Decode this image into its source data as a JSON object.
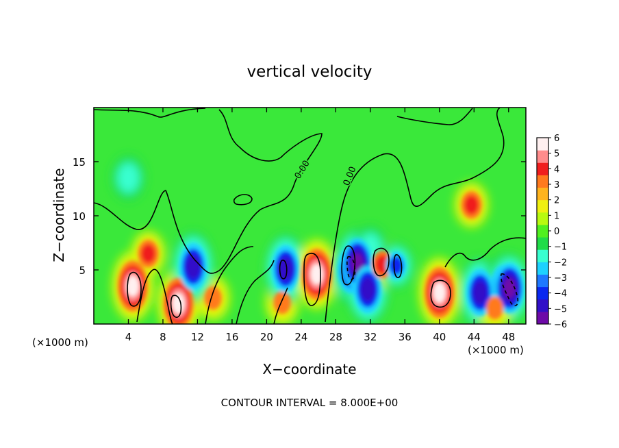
{
  "chart_data": {
    "type": "heatmap",
    "title": "vertical velocity",
    "xlabel": "X−coordinate",
    "ylabel": "Z−coordinate",
    "x_unit_left": "(×1000 m)",
    "x_unit_right": "(×1000 m)",
    "footer": "CONTOUR INTERVAL = 8.000E+00",
    "xlim": [
      0,
      50
    ],
    "ylim": [
      0,
      20
    ],
    "x_ticks": [
      4,
      8,
      12,
      16,
      20,
      24,
      28,
      32,
      36,
      40,
      44,
      48
    ],
    "y_ticks": [
      5,
      10,
      15
    ],
    "contour_labels": [
      "0.00",
      "0.00"
    ],
    "colorbar": {
      "min": -6,
      "max": 6,
      "ticks": [
        6,
        5,
        4,
        3,
        2,
        1,
        0,
        "−1",
        "−2",
        "−3",
        "−4",
        "−5",
        "−6"
      ],
      "colors": [
        "#6e0aa8",
        "#3210c8",
        "#0a28f0",
        "#1e78ff",
        "#1ed2ff",
        "#38ffd0",
        "#20dc48",
        "#50f020",
        "#b8fa10",
        "#f0f010",
        "#ffb41e",
        "#ff7a1e",
        "#f01e1e",
        "#ff8c8c",
        "#fff0f0"
      ]
    },
    "features": [
      {
        "x": 4.5,
        "z": 3.5,
        "value": 6
      },
      {
        "x": 6.3,
        "z": 6.5,
        "value": 4
      },
      {
        "x": 9.8,
        "z": 1.9,
        "value": 6
      },
      {
        "x": 13.8,
        "z": 2.4,
        "value": 3
      },
      {
        "x": 11.5,
        "z": 5.3,
        "value": -5
      },
      {
        "x": 21.8,
        "z": 2.0,
        "value": 3
      },
      {
        "x": 22.2,
        "z": 5.1,
        "value": -5
      },
      {
        "x": 25.8,
        "z": 4.6,
        "value": 6
      },
      {
        "x": 29.8,
        "z": 5.0,
        "value": -5
      },
      {
        "x": 30.5,
        "z": 5.6,
        "value": -6
      },
      {
        "x": 31.7,
        "z": 3.2,
        "value": -5
      },
      {
        "x": 33.4,
        "z": 5.5,
        "value": 4
      },
      {
        "x": 35.0,
        "z": 5.4,
        "value": -4
      },
      {
        "x": 40.0,
        "z": 2.9,
        "value": 6
      },
      {
        "x": 43.7,
        "z": 11.0,
        "value": 4
      },
      {
        "x": 44.7,
        "z": 2.9,
        "value": -5
      },
      {
        "x": 47.5,
        "z": 3.3,
        "value": -5
      },
      {
        "x": 48.1,
        "z": 3.3,
        "value": -6
      },
      {
        "x": 46.4,
        "z": 1.5,
        "value": 3
      },
      {
        "x": 4.0,
        "z": 13.5,
        "value": -2
      },
      {
        "x": 32.0,
        "z": 7.0,
        "value": -2
      }
    ]
  }
}
